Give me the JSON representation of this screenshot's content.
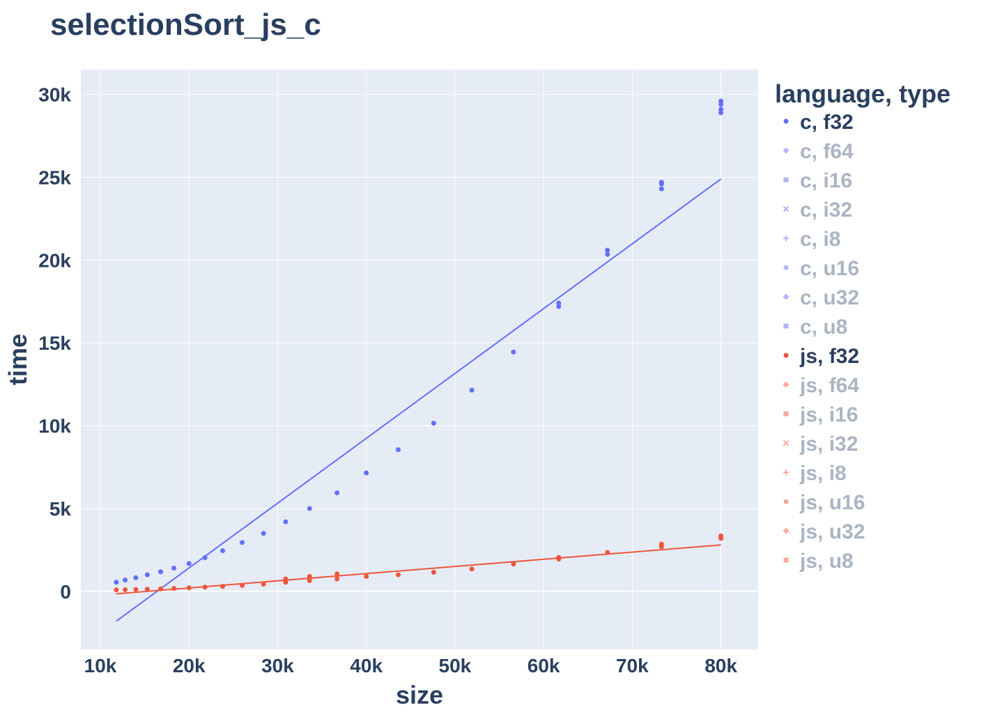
{
  "chart_data": {
    "type": "scatter",
    "title": "selectionSort_js_c",
    "xlabel": "size",
    "ylabel": "time",
    "xlim": [
      7800,
      84200
    ],
    "ylim": [
      -3500,
      31500
    ],
    "x_ticks": [
      10000,
      20000,
      30000,
      40000,
      50000,
      60000,
      70000,
      80000
    ],
    "x_tick_labels": [
      "10k",
      "20k",
      "30k",
      "40k",
      "50k",
      "60k",
      "70k",
      "80k"
    ],
    "y_ticks": [
      0,
      5000,
      10000,
      15000,
      20000,
      25000,
      30000
    ],
    "y_tick_labels": [
      "0",
      "5k",
      "10k",
      "15k",
      "20k",
      "25k",
      "30k"
    ],
    "grid": true,
    "legend": {
      "title": "language, type",
      "placement": "right",
      "entries": [
        {
          "label": "c, f32",
          "color": "#636efa",
          "marker": "circle",
          "active": true
        },
        {
          "label": "c, f64",
          "color": "#636efa",
          "marker": "diamond",
          "active": false
        },
        {
          "label": "c, i16",
          "color": "#636efa",
          "marker": "square",
          "active": false
        },
        {
          "label": "c, i32",
          "color": "#636efa",
          "marker": "x",
          "active": false
        },
        {
          "label": "c, i8",
          "color": "#636efa",
          "marker": "cross",
          "active": false
        },
        {
          "label": "c, u16",
          "color": "#636efa",
          "marker": "circle",
          "active": false
        },
        {
          "label": "c, u32",
          "color": "#636efa",
          "marker": "diamond",
          "active": false
        },
        {
          "label": "c, u8",
          "color": "#636efa",
          "marker": "square",
          "active": false
        },
        {
          "label": "js, f32",
          "color": "#ef553b",
          "marker": "circle",
          "active": true
        },
        {
          "label": "js, f64",
          "color": "#ef553b",
          "marker": "diamond",
          "active": false
        },
        {
          "label": "js, i16",
          "color": "#ef553b",
          "marker": "square",
          "active": false
        },
        {
          "label": "js, i32",
          "color": "#ef553b",
          "marker": "x",
          "active": false
        },
        {
          "label": "js, i8",
          "color": "#ef553b",
          "marker": "cross",
          "active": false
        },
        {
          "label": "js, u16",
          "color": "#ef553b",
          "marker": "circle",
          "active": false
        },
        {
          "label": "js, u32",
          "color": "#ef553b",
          "marker": "diamond",
          "active": false
        },
        {
          "label": "js, u8",
          "color": "#ef553b",
          "marker": "square",
          "active": false
        }
      ]
    },
    "series": [
      {
        "name": "c, f32",
        "color": "#636efa",
        "x": [
          11800,
          12800,
          14000,
          15300,
          16800,
          18300,
          20000,
          21800,
          23800,
          26000,
          28400,
          30900,
          33600,
          36700,
          40000,
          43600,
          47600,
          51900,
          56600,
          61700,
          61700,
          67200,
          67200,
          73300,
          73300,
          73300,
          80000,
          80000,
          80000,
          80000
        ],
        "y": [
          550,
          680,
          820,
          1000,
          1180,
          1400,
          1680,
          2030,
          2450,
          2950,
          3500,
          4200,
          5000,
          5950,
          7150,
          8550,
          10150,
          12150,
          14450,
          17200,
          17400,
          20350,
          20600,
          24300,
          24600,
          24700,
          28900,
          29100,
          29400,
          29600
        ],
        "trendline": {
          "x": [
            11800,
            80000
          ],
          "y": [
            -1800,
            24900
          ]
        }
      },
      {
        "name": "js, f32",
        "color": "#ef553b",
        "x": [
          11800,
          12800,
          14000,
          15300,
          16800,
          18300,
          20000,
          21800,
          23800,
          26000,
          28400,
          30900,
          30900,
          33600,
          33600,
          36700,
          36700,
          40000,
          43600,
          47600,
          51900,
          56600,
          61700,
          61700,
          67200,
          73300,
          73300,
          80000,
          80000
        ],
        "y": [
          90,
          100,
          115,
          130,
          150,
          175,
          210,
          255,
          300,
          360,
          430,
          550,
          750,
          650,
          900,
          750,
          1050,
          900,
          1000,
          1150,
          1350,
          1650,
          1950,
          2050,
          2350,
          2700,
          2850,
          3200,
          3350
        ],
        "trendline": {
          "x": [
            11800,
            80000
          ],
          "y": [
            -150,
            2800
          ]
        }
      }
    ]
  }
}
